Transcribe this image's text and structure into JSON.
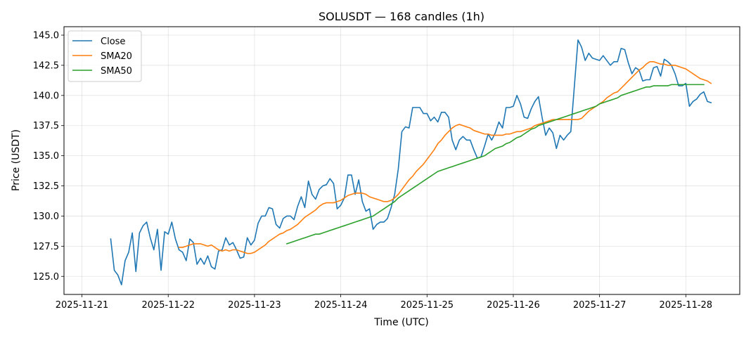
{
  "chart_data": {
    "type": "line",
    "title": "SOLUSDT — 168 candles (1h)",
    "xlabel": "Time (UTC)",
    "ylabel": "Price (USDT)",
    "x_start": "2025-11-21T08:00",
    "x_interval_hours": 1,
    "x_ticks": [
      "2025-11-21",
      "2025-11-22",
      "2025-11-23",
      "2025-11-24",
      "2025-11-25",
      "2025-11-26",
      "2025-11-27",
      "2025-11-28"
    ],
    "xlim": [
      "2025-11-20T19:00",
      "2025-11-28T15:00"
    ],
    "y_ticks": [
      125.0,
      127.5,
      130.0,
      132.5,
      135.0,
      137.5,
      140.0,
      142.5,
      145.0
    ],
    "ylim": [
      123.5,
      145.7
    ],
    "grid": true,
    "legend_position": "upper-left",
    "colors": {
      "close": "#1f77b4",
      "sma20": "#ff7f0e",
      "sma50": "#2ca02c"
    },
    "series": [
      {
        "name": "Close",
        "values": [
          128.1,
          125.5,
          125.1,
          124.3,
          126.3,
          127.0,
          128.6,
          125.4,
          128.6,
          129.2,
          129.5,
          128.2,
          127.2,
          128.9,
          125.5,
          128.7,
          128.5,
          129.5,
          128.1,
          127.2,
          127.0,
          126.3,
          128.1,
          127.8,
          126.0,
          126.5,
          126.0,
          126.7,
          125.8,
          125.6,
          127.1,
          127.2,
          128.2,
          127.6,
          127.8,
          127.2,
          126.5,
          126.6,
          128.2,
          127.6,
          128.0,
          129.4,
          130.0,
          130.0,
          130.7,
          130.6,
          129.3,
          129.0,
          129.8,
          130.0,
          130.0,
          129.7,
          130.8,
          131.6,
          130.7,
          132.9,
          131.8,
          131.4,
          132.2,
          132.5,
          132.6,
          133.1,
          132.7,
          130.6,
          130.9,
          131.5,
          133.4,
          133.4,
          131.8,
          133.0,
          131.2,
          130.4,
          130.6,
          128.9,
          129.3,
          129.5,
          129.5,
          129.8,
          130.7,
          131.8,
          133.9,
          137.0,
          137.4,
          137.3,
          139.0,
          139.0,
          139.0,
          138.5,
          138.5,
          137.9,
          138.2,
          137.8,
          138.6,
          138.6,
          138.2,
          136.3,
          135.5,
          136.3,
          136.6,
          136.3,
          136.3,
          135.5,
          134.8,
          134.9,
          135.8,
          136.8,
          136.3,
          136.9,
          137.8,
          137.3,
          139.0,
          139.0,
          139.1,
          140.0,
          139.3,
          138.2,
          138.1,
          138.9,
          139.5,
          139.9,
          138.2,
          136.7,
          137.3,
          136.9,
          135.6,
          136.7,
          136.3,
          136.7,
          137.0,
          140.8,
          144.6,
          144.0,
          142.9,
          143.5,
          143.1,
          143.0,
          142.9,
          143.3,
          142.9,
          142.5,
          142.8,
          142.8,
          143.9,
          143.8,
          142.7,
          141.8,
          142.3,
          142.1,
          141.2,
          141.3,
          141.3,
          142.3,
          142.4,
          141.6,
          143.0,
          142.8,
          142.5,
          141.8,
          140.8,
          140.8,
          141.0,
          139.1,
          139.5,
          139.7,
          140.1,
          140.3,
          139.5,
          139.4
        ]
      },
      {
        "name": "SMA20",
        "values": [
          null,
          null,
          null,
          null,
          null,
          null,
          null,
          null,
          null,
          null,
          null,
          null,
          null,
          null,
          null,
          null,
          null,
          null,
          null,
          127.4,
          127.4,
          127.5,
          127.6,
          127.7,
          127.7,
          127.7,
          127.6,
          127.5,
          127.6,
          127.4,
          127.2,
          127.1,
          127.2,
          127.1,
          127.2,
          127.2,
          127.1,
          127.0,
          126.9,
          126.9,
          127.0,
          127.2,
          127.4,
          127.6,
          127.9,
          128.1,
          128.3,
          128.5,
          128.6,
          128.8,
          128.9,
          129.1,
          129.3,
          129.6,
          129.9,
          130.1,
          130.3,
          130.5,
          130.8,
          131.0,
          131.1,
          131.1,
          131.1,
          131.2,
          131.3,
          131.5,
          131.7,
          131.8,
          131.9,
          131.9,
          131.9,
          131.8,
          131.6,
          131.5,
          131.4,
          131.3,
          131.2,
          131.2,
          131.3,
          131.5,
          131.8,
          132.2,
          132.6,
          133.0,
          133.3,
          133.7,
          134.0,
          134.3,
          134.7,
          135.1,
          135.5,
          136.0,
          136.3,
          136.7,
          137.0,
          137.3,
          137.5,
          137.6,
          137.5,
          137.4,
          137.3,
          137.1,
          137.0,
          136.9,
          136.8,
          136.8,
          136.7,
          136.7,
          136.7,
          136.7,
          136.8,
          136.8,
          136.9,
          137.0,
          137.0,
          137.1,
          137.2,
          137.3,
          137.5,
          137.6,
          137.7,
          137.8,
          137.9,
          138.0,
          138.0,
          138.0,
          138.0,
          138.0,
          138.0,
          138.0,
          138.0,
          138.1,
          138.4,
          138.7,
          138.9,
          139.1,
          139.3,
          139.5,
          139.8,
          140.0,
          140.2,
          140.3,
          140.6,
          140.9,
          141.2,
          141.5,
          141.8,
          142.1,
          142.3,
          142.6,
          142.8,
          142.8,
          142.7,
          142.6,
          142.6,
          142.5,
          142.5,
          142.5,
          142.4,
          142.3,
          142.2,
          142.0,
          141.8,
          141.6,
          141.4,
          141.3,
          141.2,
          141.0
        ]
      },
      {
        "name": "SMA50",
        "values": [
          null,
          null,
          null,
          null,
          null,
          null,
          null,
          null,
          null,
          null,
          null,
          null,
          null,
          null,
          null,
          null,
          null,
          null,
          null,
          null,
          null,
          null,
          null,
          null,
          null,
          null,
          null,
          null,
          null,
          null,
          null,
          null,
          null,
          null,
          null,
          null,
          null,
          null,
          null,
          null,
          null,
          null,
          null,
          null,
          null,
          null,
          null,
          null,
          null,
          127.7,
          127.8,
          127.9,
          128.0,
          128.1,
          128.2,
          128.3,
          128.4,
          128.5,
          128.5,
          128.6,
          128.7,
          128.8,
          128.9,
          129.0,
          129.1,
          129.2,
          129.3,
          129.4,
          129.5,
          129.6,
          129.7,
          129.8,
          129.9,
          130.0,
          130.2,
          130.4,
          130.6,
          130.8,
          131.0,
          131.2,
          131.5,
          131.7,
          131.9,
          132.1,
          132.3,
          132.5,
          132.7,
          132.9,
          133.1,
          133.3,
          133.5,
          133.7,
          133.8,
          133.9,
          134.0,
          134.1,
          134.2,
          134.3,
          134.4,
          134.5,
          134.6,
          134.7,
          134.8,
          134.9,
          135.0,
          135.2,
          135.4,
          135.6,
          135.7,
          135.8,
          136.0,
          136.1,
          136.3,
          136.5,
          136.6,
          136.8,
          137.0,
          137.2,
          137.3,
          137.5,
          137.6,
          137.7,
          137.8,
          137.9,
          138.0,
          138.1,
          138.2,
          138.3,
          138.4,
          138.5,
          138.6,
          138.7,
          138.8,
          138.9,
          139.0,
          139.1,
          139.3,
          139.4,
          139.5,
          139.6,
          139.7,
          139.8,
          140.0,
          140.1,
          140.2,
          140.3,
          140.4,
          140.5,
          140.6,
          140.7,
          140.7,
          140.8,
          140.8,
          140.8,
          140.8,
          140.8,
          140.9,
          140.9,
          140.9,
          140.9,
          140.9,
          140.9,
          140.9,
          140.9,
          140.9,
          140.9
        ]
      }
    ]
  }
}
